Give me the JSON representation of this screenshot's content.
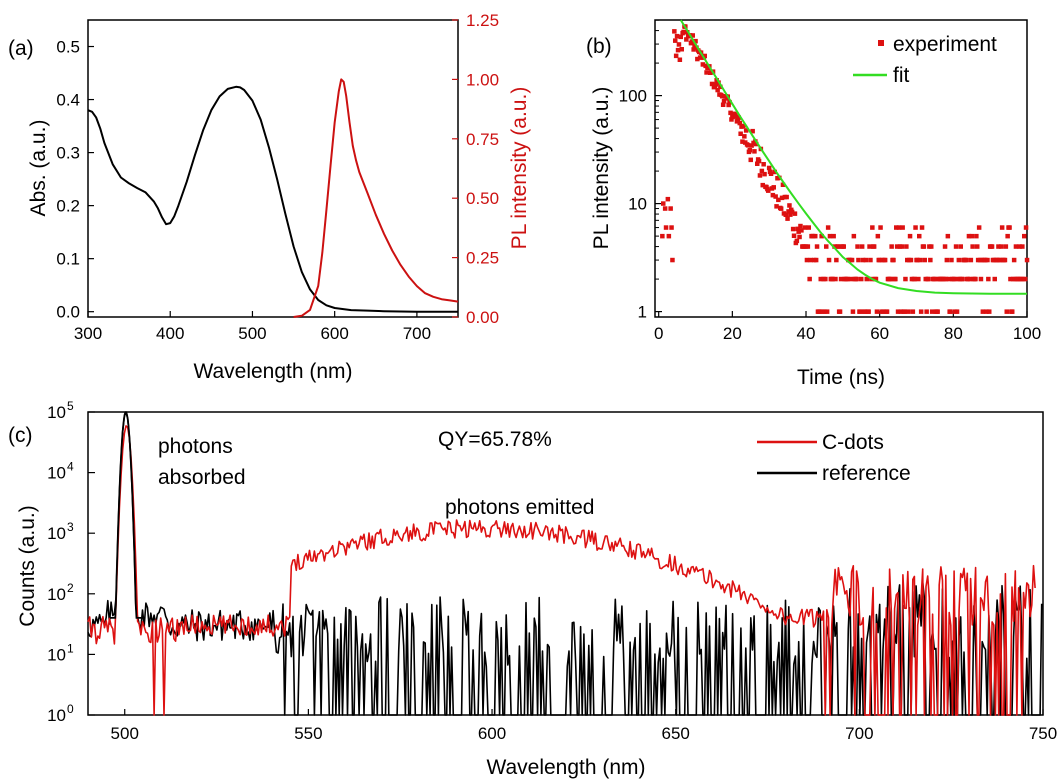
{
  "chart_data": [
    {
      "panel_label": "(a)",
      "type": "line",
      "xlabel": "Wavelength (nm)",
      "ylabel_left": "Abs. (a.u.)",
      "ylabel_right": "PL intensity (a.u.)",
      "xlim": [
        300,
        750
      ],
      "ylim_left": [
        -0.01,
        0.55
      ],
      "ylim_right": [
        0,
        1.25
      ],
      "x_ticks": [
        "300",
        "400",
        "500",
        "600",
        "700"
      ],
      "y_ticks_left": [
        "0.0",
        "0.1",
        "0.2",
        "0.3",
        "0.4",
        "0.5"
      ],
      "y_ticks_right": [
        "0.00",
        "0.25",
        "0.50",
        "0.75",
        "1.00",
        "1.25"
      ],
      "series": [
        {
          "axis": "left",
          "color": "#000000",
          "x": [
            300,
            305,
            310,
            315,
            320,
            330,
            340,
            350,
            360,
            370,
            380,
            385,
            390,
            395,
            400,
            405,
            410,
            420,
            430,
            440,
            450,
            460,
            470,
            480,
            485,
            490,
            500,
            510,
            520,
            530,
            540,
            550,
            560,
            570,
            580,
            590,
            600,
            620,
            640,
            660,
            700,
            750
          ],
          "y": [
            0.38,
            0.377,
            0.366,
            0.345,
            0.318,
            0.278,
            0.253,
            0.242,
            0.233,
            0.225,
            0.208,
            0.195,
            0.178,
            0.165,
            0.167,
            0.18,
            0.2,
            0.245,
            0.295,
            0.342,
            0.38,
            0.406,
            0.42,
            0.424,
            0.423,
            0.418,
            0.398,
            0.362,
            0.31,
            0.25,
            0.185,
            0.123,
            0.075,
            0.042,
            0.022,
            0.012,
            0.007,
            0.003,
            0.002,
            0.001,
            0.0,
            0.0
          ]
        },
        {
          "axis": "right",
          "color": "#cc1111",
          "x": [
            550,
            560,
            570,
            580,
            585,
            590,
            595,
            600,
            605,
            608,
            611,
            614,
            618,
            622,
            626,
            630,
            640,
            650,
            660,
            670,
            680,
            690,
            700,
            710,
            720,
            730,
            740,
            750
          ],
          "y": [
            0.0,
            0.005,
            0.03,
            0.13,
            0.27,
            0.45,
            0.64,
            0.82,
            0.95,
            1.0,
            0.99,
            0.93,
            0.82,
            0.72,
            0.66,
            0.61,
            0.52,
            0.43,
            0.35,
            0.28,
            0.22,
            0.17,
            0.13,
            0.1,
            0.085,
            0.075,
            0.07,
            0.065
          ]
        }
      ]
    },
    {
      "panel_label": "(b)",
      "type": "scatter",
      "xlabel": "Time (ns)",
      "ylabel": "PL intensity (a.u.)",
      "xlim": [
        -1,
        100
      ],
      "ylim_log10": [
        -0.05,
        2.7
      ],
      "yscale": "log",
      "x_ticks": [
        "0",
        "20",
        "40",
        "60",
        "80",
        "100"
      ],
      "y_ticks": [
        "1",
        "10",
        "100"
      ],
      "legend": {
        "position": "top-right",
        "entries": [
          {
            "label": "experiment",
            "color": "#dd1111",
            "kind": "marker"
          },
          {
            "label": "fit",
            "color": "#33dd22",
            "kind": "line"
          }
        ]
      },
      "experiment": {
        "color": "#dd1111",
        "decay_peak": 420,
        "decay_tau_ns": 7.2,
        "peak_time_ns": 7,
        "noise_levels": [
          1,
          2,
          3,
          4,
          5,
          6
        ]
      },
      "fit": {
        "color": "#33dd22",
        "t": [
          6,
          8,
          10,
          12,
          14,
          16,
          18,
          20,
          22,
          24,
          26,
          28,
          30,
          32,
          34,
          36,
          38,
          40,
          42,
          44,
          46,
          48,
          50,
          52,
          54,
          56,
          58,
          60,
          65,
          70,
          75,
          80,
          85,
          90,
          95,
          100
        ],
        "y": [
          500,
          390,
          300,
          232,
          180,
          140,
          108,
          84,
          65,
          51,
          40,
          31.3,
          24.7,
          19.5,
          15.5,
          12.4,
          10,
          8.1,
          6.6,
          5.4,
          4.5,
          3.8,
          3.2,
          2.8,
          2.45,
          2.2,
          2.0,
          1.85,
          1.65,
          1.55,
          1.5,
          1.48,
          1.47,
          1.46,
          1.46,
          1.46
        ]
      }
    },
    {
      "panel_label": "(c)",
      "type": "line",
      "xlabel": "Wavelength (nm)",
      "ylabel": "Counts (a.u.)",
      "yscale": "log",
      "xlim": [
        490,
        750
      ],
      "ylim_log10": [
        0,
        5
      ],
      "x_ticks": [
        "500",
        "550",
        "600",
        "650",
        "700",
        "750"
      ],
      "y_ticks": [
        {
          "base": "10",
          "exp": "0"
        },
        {
          "base": "10",
          "exp": "1"
        },
        {
          "base": "10",
          "exp": "2"
        },
        {
          "base": "10",
          "exp": "3"
        },
        {
          "base": "10",
          "exp": "4"
        },
        {
          "base": "10",
          "exp": "5"
        }
      ],
      "annotations": {
        "qy": "QY=65.78%",
        "absorbed_line1": "photons",
        "absorbed_line2": "absorbed",
        "emitted": "photons emitted"
      },
      "legend": {
        "position": "top-right",
        "entries": [
          {
            "label": "C-dots",
            "color": "#dd1111"
          },
          {
            "label": "reference",
            "color": "#000000"
          }
        ]
      },
      "series": [
        {
          "name": "C-dots",
          "color": "#dd1111",
          "peak_center_nm": 500.5,
          "peak_height": 60000,
          "emission_center_nm": 597,
          "emission_peak": 1200,
          "emission_sigma_nm": 45
        },
        {
          "name": "reference",
          "color": "#000000",
          "peak_center_nm": 500.3,
          "peak_height": 100000
        }
      ]
    }
  ]
}
